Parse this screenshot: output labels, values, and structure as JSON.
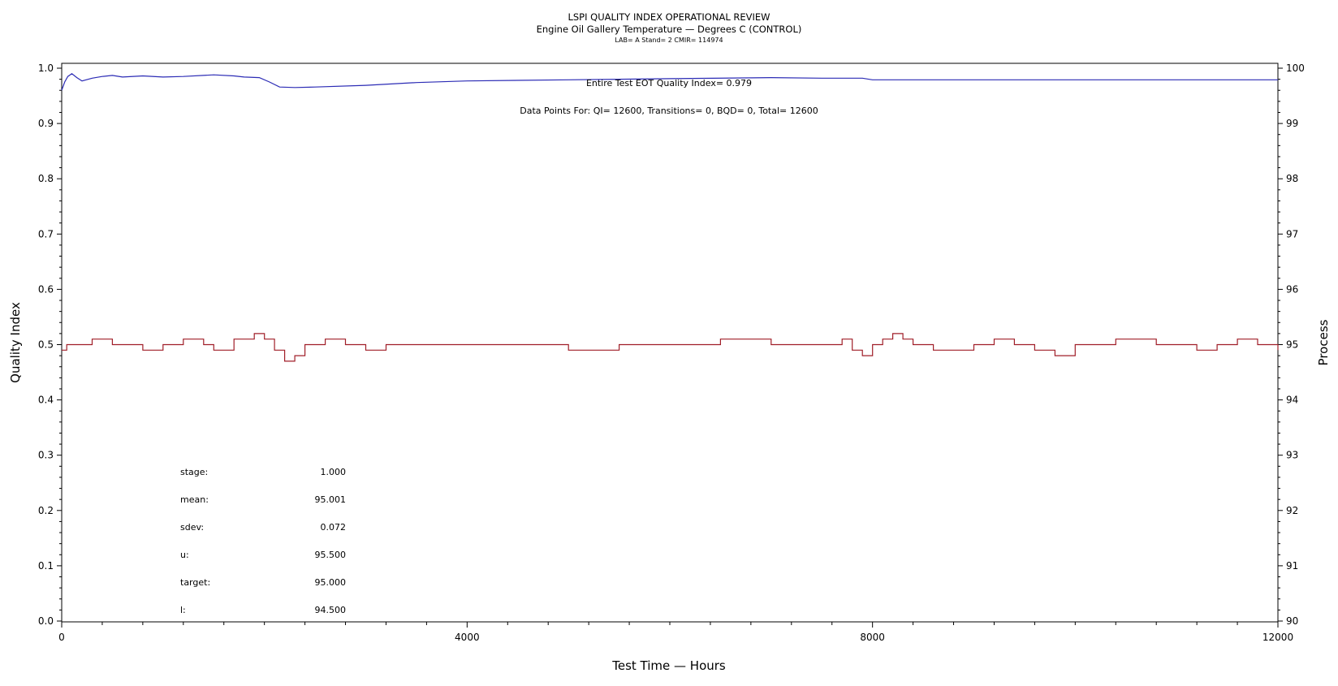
{
  "titles": {
    "line1": "LSPI QUALITY INDEX OPERATIONAL REVIEW",
    "line2": "Engine Oil Gallery Temperature — Degrees C (CONTROL)",
    "line3": "LAB= A Stand= 2 CMIR= 114974"
  },
  "annotations": {
    "quality_index": "Entire Test EOT Quality Index=   0.979",
    "data_points": "Data Points For: QI= 12600, Transitions=     0, BQD=     0, Total= 12600"
  },
  "stats": [
    {
      "label": "stage:",
      "value": "1.000"
    },
    {
      "label": "mean:",
      "value": "95.001"
    },
    {
      "label": "sdev:",
      "value": "0.072"
    },
    {
      "label": "u:",
      "value": "95.500"
    },
    {
      "label": "target:",
      "value": "95.000"
    },
    {
      "label": "l:",
      "value": "94.500"
    }
  ],
  "colors": {
    "quality_line": "#2b2bb5",
    "process_line": "#a01e28",
    "axis": "#000000"
  },
  "chart_data": {
    "type": "line",
    "xlabel": "Test Time — Hours",
    "ylabel": "Quality Index",
    "y2label": "Process",
    "xlim": [
      0,
      12000
    ],
    "ylim": [
      0.0,
      1.0
    ],
    "y2lim": [
      90,
      100
    ],
    "x_ticks": [
      0,
      4000,
      8000,
      12000
    ],
    "y_ticks": [
      "0.0",
      "0.1",
      "0.2",
      "0.3",
      "0.4",
      "0.5",
      "0.6",
      "0.7",
      "0.8",
      "0.9",
      "1.0"
    ],
    "y2_ticks": [
      "90",
      "91",
      "92",
      "93",
      "94",
      "95",
      "96",
      "97",
      "98",
      "99",
      "100"
    ],
    "grid": false,
    "series": [
      {
        "axis": "left",
        "x": [
          0,
          30,
          60,
          100,
          150,
          200,
          300,
          400,
          500,
          600,
          800,
          1000,
          1200,
          1500,
          1700,
          1800,
          1950,
          2050,
          2150,
          2300,
          2500,
          3000,
          3500,
          4000,
          5000,
          6000,
          7000,
          7500,
          7900,
          8000,
          9000,
          10000,
          11000,
          12000
        ],
        "values": [
          0.96,
          0.975,
          0.985,
          0.99,
          0.983,
          0.977,
          0.982,
          0.985,
          0.987,
          0.984,
          0.986,
          0.984,
          0.985,
          0.988,
          0.986,
          0.984,
          0.983,
          0.975,
          0.966,
          0.965,
          0.966,
          0.969,
          0.974,
          0.977,
          0.979,
          0.981,
          0.983,
          0.982,
          0.982,
          0.979,
          0.979,
          0.979,
          0.979,
          0.979
        ]
      },
      {
        "axis": "right",
        "x": [
          0,
          50,
          100,
          300,
          500,
          800,
          1000,
          1200,
          1400,
          1500,
          1700,
          1800,
          1900,
          2000,
          2100,
          2200,
          2300,
          2400,
          2600,
          2800,
          3000,
          3200,
          3500,
          4000,
          4500,
          5000,
          5500,
          6000,
          6500,
          7000,
          7500,
          7700,
          7800,
          7900,
          8000,
          8100,
          8200,
          8300,
          8400,
          8600,
          9000,
          9200,
          9400,
          9600,
          9800,
          10000,
          10400,
          10800,
          11200,
          11400,
          11600,
          11800,
          12000
        ],
        "values": [
          94.9,
          95.0,
          95.0,
          95.1,
          95.0,
          94.9,
          95.0,
          95.1,
          95.0,
          94.9,
          95.1,
          95.1,
          95.2,
          95.1,
          94.9,
          94.7,
          94.8,
          95.0,
          95.1,
          95.0,
          94.9,
          95.0,
          95.0,
          95.0,
          95.0,
          94.9,
          95.0,
          95.0,
          95.1,
          95.0,
          95.0,
          95.1,
          94.9,
          94.8,
          95.0,
          95.1,
          95.2,
          95.1,
          95.0,
          94.9,
          95.0,
          95.1,
          95.0,
          94.9,
          94.8,
          95.0,
          95.1,
          95.0,
          94.9,
          95.0,
          95.1,
          95.0,
          94.9
        ]
      }
    ]
  }
}
